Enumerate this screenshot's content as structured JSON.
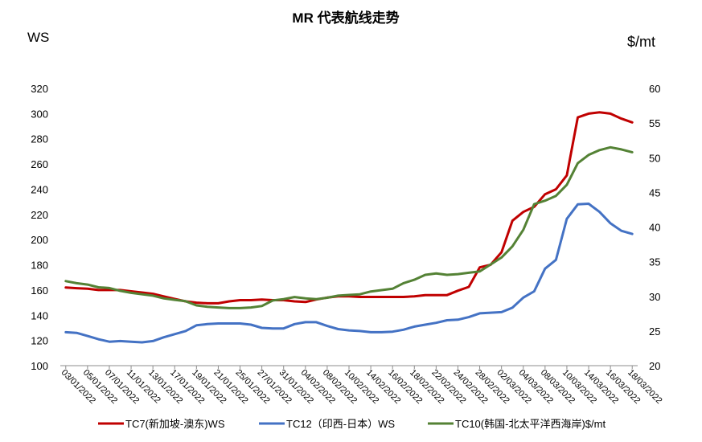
{
  "chart_data": {
    "type": "line",
    "title": "MR 代表航线走势",
    "y_left_label": "WS",
    "y_right_label": "$/mt",
    "y_left_lim": [
      100,
      320
    ],
    "y_left_ticks": [
      100,
      120,
      140,
      160,
      180,
      200,
      220,
      240,
      260,
      280,
      300,
      320
    ],
    "y_right_lim": [
      20,
      60
    ],
    "y_right_ticks": [
      20,
      25,
      30,
      35,
      40,
      45,
      50,
      55,
      60
    ],
    "grid": false,
    "legend_position": "bottom",
    "x": [
      "03/01/2022",
      "04/01/2022",
      "05/01/2022",
      "06/01/2022",
      "07/01/2022",
      "10/01/2022",
      "11/01/2022",
      "12/01/2022",
      "13/01/2022",
      "14/01/2022",
      "17/01/2022",
      "18/01/2022",
      "19/01/2022",
      "20/01/2022",
      "21/01/2022",
      "24/01/2022",
      "25/01/2022",
      "26/01/2022",
      "27/01/2022",
      "28/01/2022",
      "31/01/2022",
      "03/02/2022",
      "04/02/2022",
      "07/02/2022",
      "08/02/2022",
      "09/02/2022",
      "10/02/2022",
      "11/02/2022",
      "14/02/2022",
      "15/02/2022",
      "16/02/2022",
      "17/02/2022",
      "18/02/2022",
      "21/02/2022",
      "22/02/2022",
      "23/02/2022",
      "24/02/2022",
      "25/02/2022",
      "28/02/2022",
      "01/03/2022",
      "02/03/2022",
      "03/03/2022",
      "04/03/2022",
      "07/03/2022",
      "08/03/2022",
      "09/03/2022",
      "10/03/2022",
      "11/03/2022",
      "14/03/2022",
      "15/03/2022",
      "16/03/2022",
      "17/03/2022",
      "18/03/2022"
    ],
    "x_tick_labels": [
      "03/01/2022",
      "05/01/2022",
      "07/01/2022",
      "11/01/2022",
      "13/01/2022",
      "17/01/2022",
      "19/01/2022",
      "21/01/2022",
      "25/01/2022",
      "27/01/2022",
      "31/01/2022",
      "04/02/2022",
      "08/02/2022",
      "10/02/2022",
      "14/02/2022",
      "16/02/2022",
      "18/02/2022",
      "22/02/2022",
      "24/02/2022",
      "28/02/2022",
      "02/03/2022",
      "04/03/2022",
      "08/03/2022",
      "10/03/2022",
      "14/03/2022",
      "16/03/2022",
      "18/03/2022"
    ],
    "series": [
      {
        "name": "TC7(新加坡-澳东)WS",
        "axis": "left",
        "color": "#c00000",
        "values": [
          162,
          161.5,
          161,
          160,
          160,
          160,
          159,
          158,
          157,
          155,
          153,
          151,
          150,
          149.5,
          149.5,
          151,
          152,
          152,
          152.5,
          152,
          152,
          151,
          150.5,
          152.5,
          154,
          155,
          155,
          154.5,
          154.5,
          154.5,
          154.5,
          154.5,
          155,
          156,
          156,
          156,
          159.5,
          162.5,
          178,
          180,
          190,
          215,
          222,
          226,
          236,
          240,
          251,
          297,
          300,
          301,
          300,
          296,
          293
        ]
      },
      {
        "name": "TC12（印西-日本）WS",
        "axis": "left",
        "color": "#4472c4",
        "values": [
          126.5,
          126,
          123.5,
          121,
          119,
          119.5,
          119,
          118.5,
          119.5,
          122.5,
          125,
          127.5,
          132,
          133,
          133.5,
          133.5,
          133.5,
          132.5,
          130,
          129.5,
          129.5,
          133,
          134.5,
          134.5,
          131.5,
          129,
          128,
          127.5,
          126.5,
          126.5,
          127,
          128.5,
          131,
          132.5,
          134,
          136,
          136.5,
          138.5,
          141.5,
          142,
          142.5,
          146,
          154,
          159,
          177,
          184,
          216.5,
          228,
          228.5,
          222,
          213,
          207,
          204.5
        ]
      },
      {
        "name": "TC10(韩国-北太平洋西海岸)$/mt",
        "axis": "right",
        "color": "#548235",
        "values": [
          32.2,
          31.9,
          31.7,
          31.3,
          31.2,
          30.8,
          30.5,
          30.3,
          30.1,
          29.7,
          29.5,
          29.3,
          28.7,
          28.5,
          28.4,
          28.3,
          28.3,
          28.4,
          28.6,
          29.4,
          29.6,
          29.9,
          29.7,
          29.6,
          29.8,
          30.1,
          30.2,
          30.3,
          30.7,
          30.9,
          31.1,
          31.9,
          32.4,
          33.1,
          33.3,
          33.1,
          33.2,
          33.4,
          33.6,
          34.6,
          35.6,
          37.2,
          39.6,
          43.3,
          43.8,
          44.5,
          46.1,
          49.2,
          50.4,
          51.1,
          51.5,
          51.2,
          50.8
        ]
      }
    ]
  }
}
